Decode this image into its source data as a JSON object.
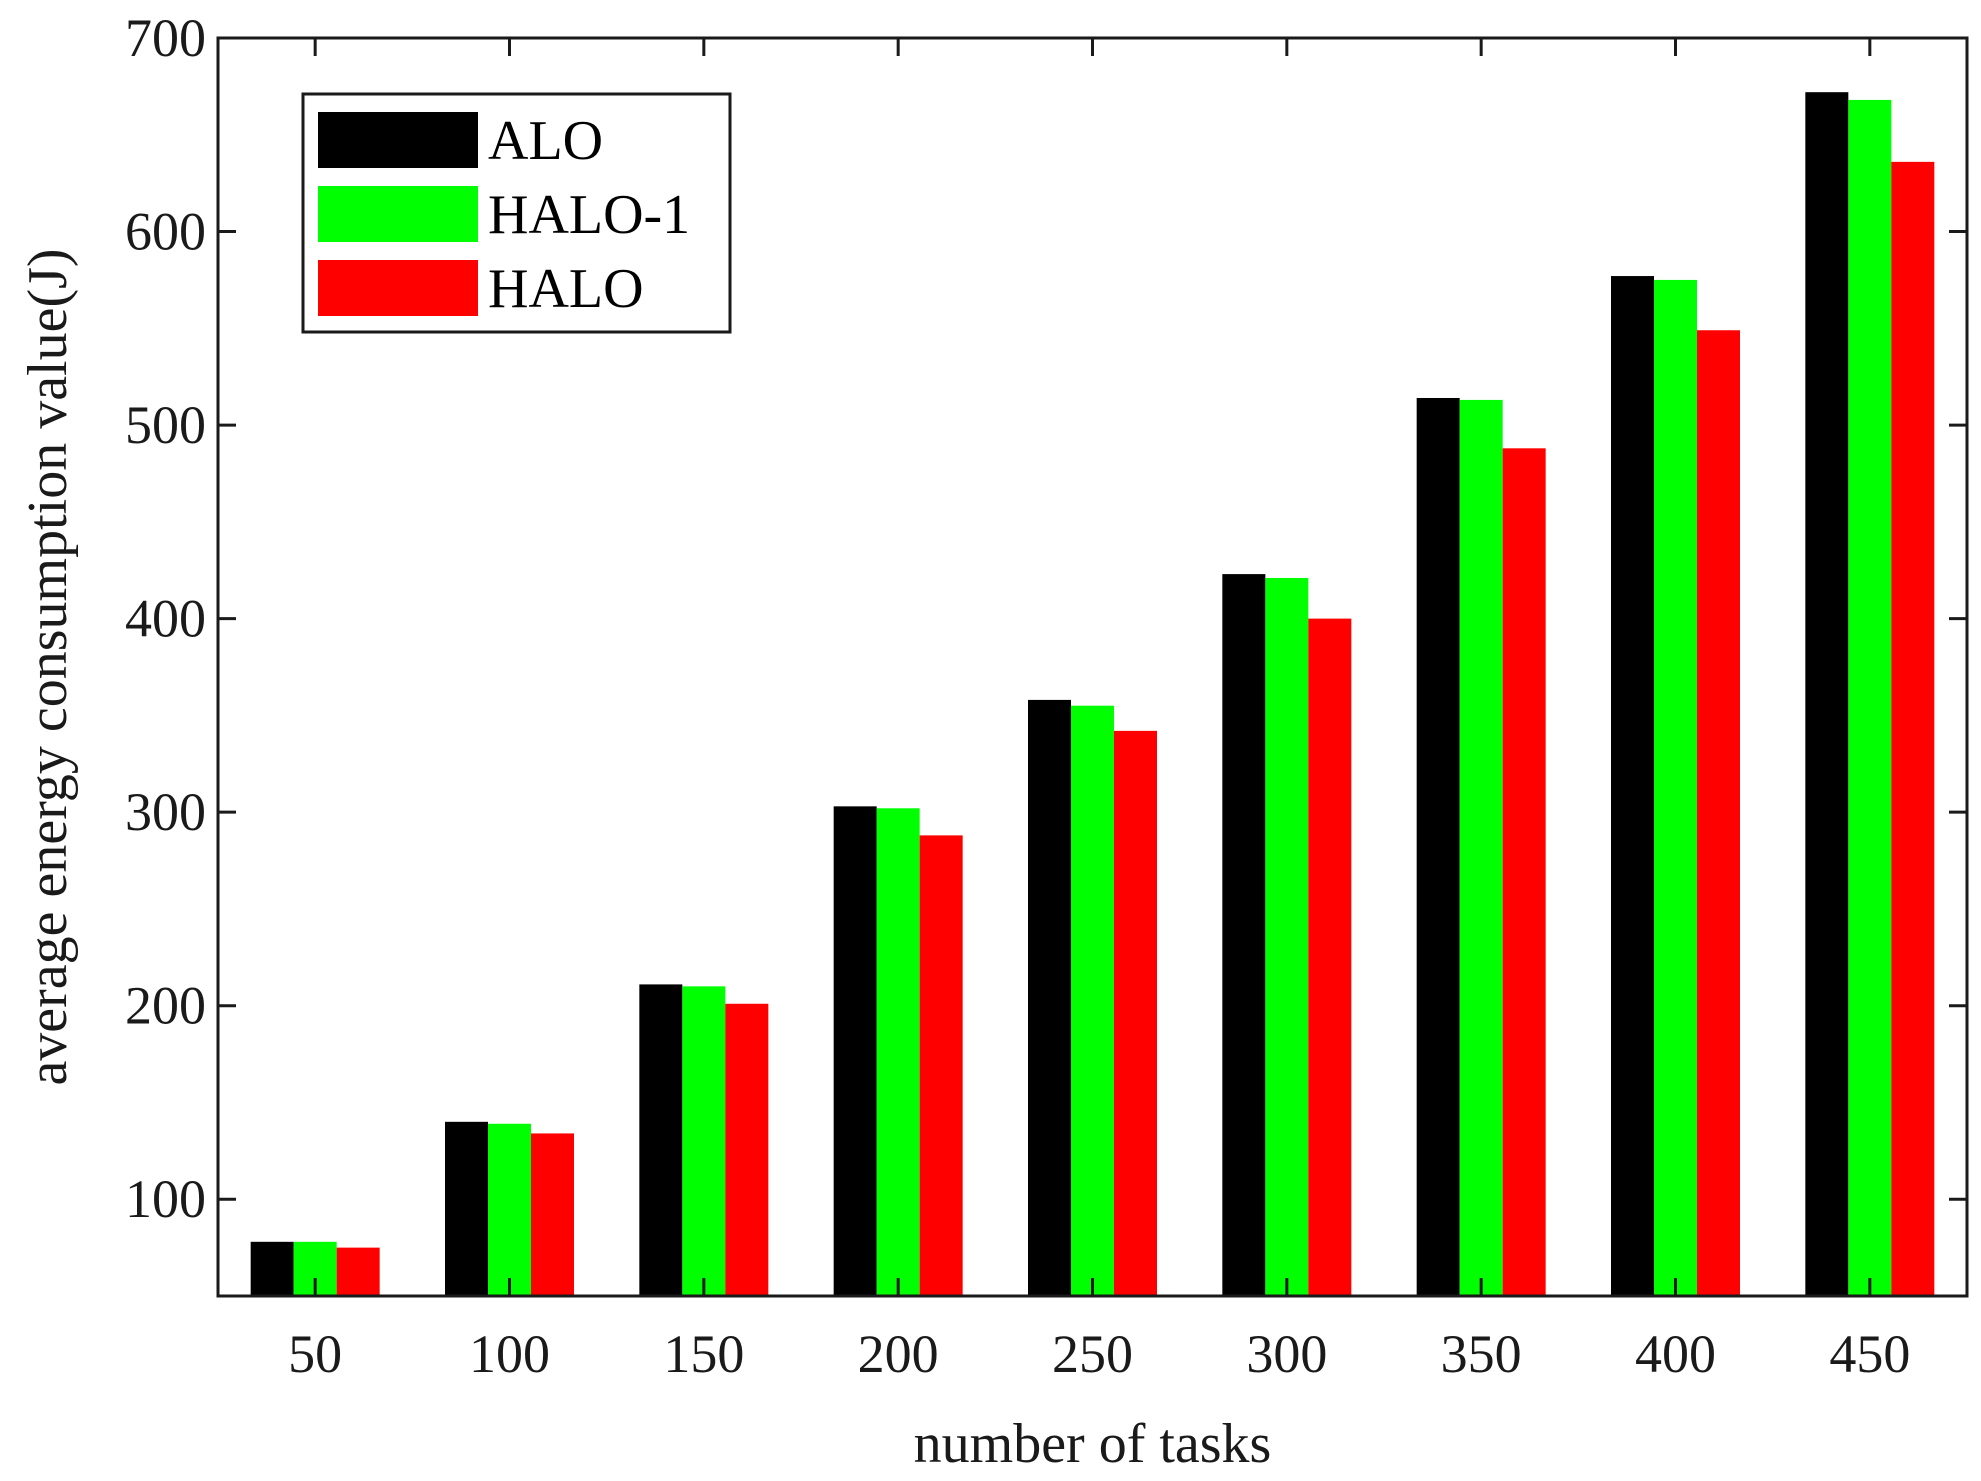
{
  "chart_data": {
    "type": "bar",
    "title": "",
    "xlabel": "number of tasks",
    "ylabel": "average energy consumption value(J)",
    "categories": [
      "50",
      "100",
      "150",
      "200",
      "250",
      "300",
      "350",
      "400",
      "450"
    ],
    "series": [
      {
        "name": "ALO",
        "color": "#000000",
        "values": [
          78,
          140,
          211,
          303,
          358,
          423,
          514,
          577,
          672
        ]
      },
      {
        "name": "HALO-1",
        "color": "#00ff00",
        "values": [
          78,
          139,
          210,
          302,
          355,
          421,
          513,
          575,
          668
        ]
      },
      {
        "name": "HALO",
        "color": "#ff0000",
        "values": [
          75,
          134,
          201,
          288,
          342,
          400,
          488,
          549,
          636
        ]
      }
    ],
    "ylim": [
      50,
      700
    ],
    "yticks": [
      100,
      200,
      300,
      400,
      500,
      600,
      700
    ],
    "grid": false,
    "legend_position": "top-left"
  }
}
